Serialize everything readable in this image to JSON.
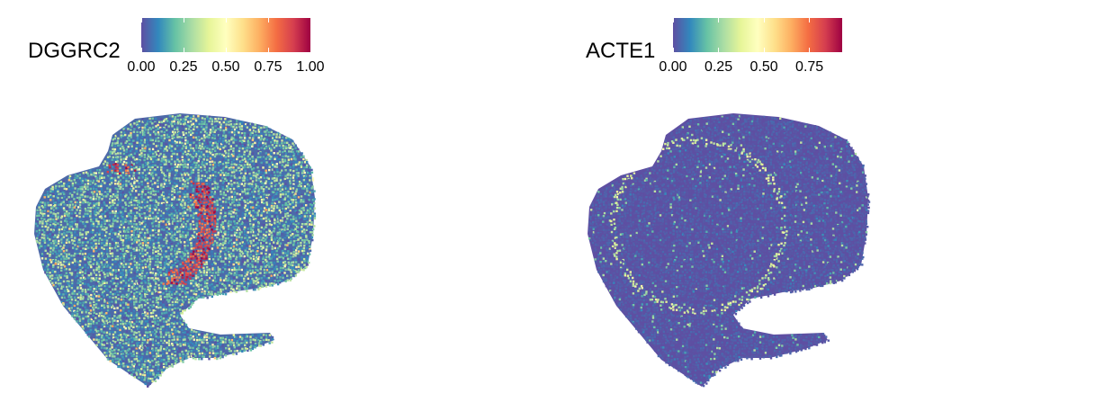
{
  "colors": {
    "palette": [
      "#5E4FA2",
      "#3288BD",
      "#66C2A5",
      "#ABDDA4",
      "#E6F598",
      "#FFFFBF",
      "#FEE08B",
      "#FDAE61",
      "#F46D43",
      "#D53E4F",
      "#9E0142"
    ],
    "background": "#FFFFFF"
  },
  "chart_data": [
    {
      "type": "spatial-scatter",
      "title": "DGGRC2",
      "colorbar": {
        "min": 0.0,
        "max": 1.0,
        "ticks": [
          "0.00",
          "0.25",
          "0.50",
          "0.75",
          "1.00"
        ],
        "tick_values": [
          0,
          0.25,
          0.5,
          0.75,
          1.0
        ],
        "palette": "Spectral (reversed)"
      },
      "grid": false,
      "axes": false,
      "legend_position": "top"
    },
    {
      "type": "spatial-scatter",
      "title": "ACTE1",
      "colorbar": {
        "min": 0.0,
        "max": 0.93,
        "ticks": [
          "0.00",
          "0.25",
          "0.50",
          "0.75"
        ],
        "tick_values": [
          0,
          0.25,
          0.5,
          0.75
        ],
        "palette": "Spectral (reversed)"
      },
      "grid": false,
      "axes": false,
      "legend_position": "top"
    }
  ]
}
